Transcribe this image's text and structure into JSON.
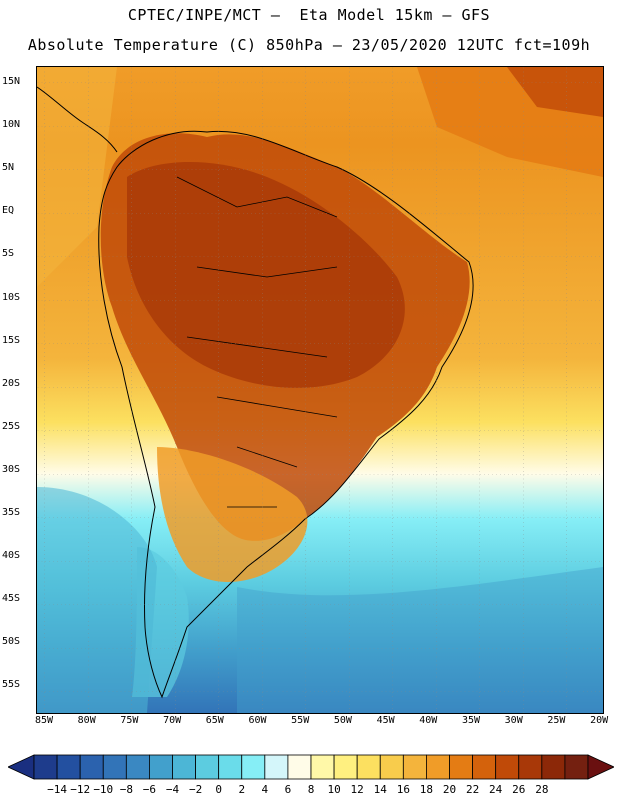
{
  "header": {
    "line1": "CPTEC/INPE/MCT –  Eta Model 15km – GFS",
    "line2": "Absolute Temperature (C) 850hPa – 23/05/2020 12UTC fct=109h"
  },
  "map": {
    "region": "South America",
    "projection": "lat-lon",
    "lon_range": [
      -85,
      -20
    ],
    "lat_range": [
      -58,
      17
    ],
    "lat_labels": [
      "15N",
      "10N",
      "5N",
      "EQ",
      "5S",
      "10S",
      "15S",
      "20S",
      "25S",
      "30S",
      "35S",
      "40S",
      "45S",
      "50S",
      "55S"
    ],
    "lon_labels": [
      "85W",
      "80W",
      "75W",
      "70W",
      "65W",
      "60W",
      "55W",
      "50W",
      "45W",
      "40W",
      "35W",
      "30W",
      "25W",
      "20W"
    ],
    "grid": "dotted"
  },
  "colorbar": {
    "labels": [
      "-14",
      "-12",
      "-10",
      "-8",
      "-6",
      "-4",
      "-2",
      "0",
      "2",
      "4",
      "6",
      "8",
      "10",
      "12",
      "14",
      "16",
      "18",
      "20",
      "22",
      "24",
      "26",
      "28"
    ],
    "colors": [
      "#1e3c8c",
      "#2350a0",
      "#2b62ae",
      "#3274b8",
      "#3a88c2",
      "#42a0cc",
      "#4cb6d6",
      "#5ccce0",
      "#6adcea",
      "#86eef6",
      "#d4f6fa",
      "#fffce8",
      "#fff8a8",
      "#fff080",
      "#fce060",
      "#f8cc4c",
      "#f4b43c",
      "#f09c28",
      "#e47c14",
      "#d4620c",
      "#c04a08",
      "#a83808",
      "#8c2808",
      "#742010"
    ],
    "left_arrow_color": "#1a2f80",
    "right_arrow_color": "#6a1010"
  }
}
